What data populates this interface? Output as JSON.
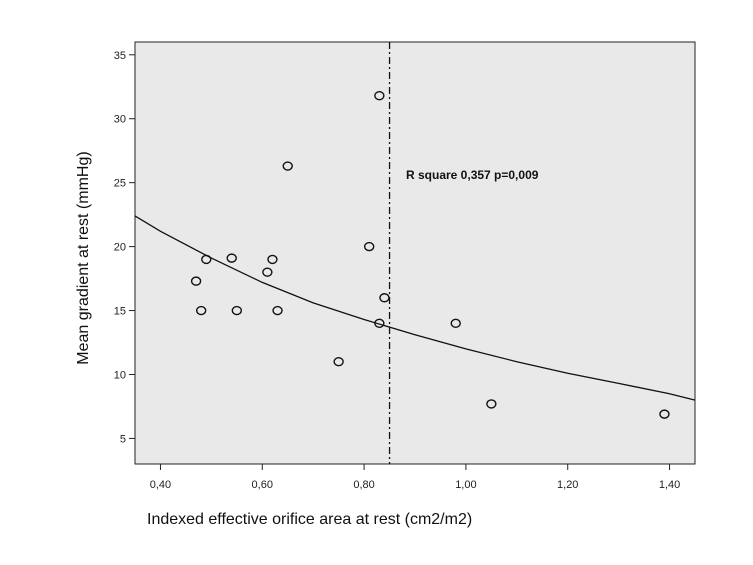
{
  "chart_data": {
    "type": "scatter",
    "title": "",
    "xlabel": "Indexed effective orifice area at rest (cm2/m2)",
    "ylabel": "Mean gradient at rest (mmHg)",
    "xlim": [
      0.35,
      1.45
    ],
    "ylim": [
      3,
      36
    ],
    "x_ticks": [
      0.4,
      0.6,
      0.8,
      1.0,
      1.2,
      1.4
    ],
    "x_tick_labels": [
      "0,40",
      "0,60",
      "0,80",
      "1,00",
      "1,20",
      "1,40"
    ],
    "y_ticks": [
      5,
      10,
      15,
      20,
      25,
      30,
      35
    ],
    "y_tick_labels": [
      "5",
      "10",
      "15",
      "20",
      "25",
      "30",
      "35"
    ],
    "points": [
      {
        "x": 0.47,
        "y": 17.3
      },
      {
        "x": 0.48,
        "y": 15.0
      },
      {
        "x": 0.49,
        "y": 19.0
      },
      {
        "x": 0.54,
        "y": 19.1
      },
      {
        "x": 0.55,
        "y": 15.0
      },
      {
        "x": 0.61,
        "y": 18.0
      },
      {
        "x": 0.62,
        "y": 19.0
      },
      {
        "x": 0.63,
        "y": 15.0
      },
      {
        "x": 0.65,
        "y": 26.3
      },
      {
        "x": 0.75,
        "y": 11.0
      },
      {
        "x": 0.81,
        "y": 20.0
      },
      {
        "x": 0.83,
        "y": 31.8
      },
      {
        "x": 0.83,
        "y": 14.0
      },
      {
        "x": 0.84,
        "y": 16.0
      },
      {
        "x": 0.98,
        "y": 14.0
      },
      {
        "x": 1.05,
        "y": 7.7
      },
      {
        "x": 1.39,
        "y": 6.9
      }
    ],
    "fit_curve": [
      {
        "x": 0.35,
        "y": 22.4
      },
      {
        "x": 0.4,
        "y": 21.2
      },
      {
        "x": 0.5,
        "y": 19.1
      },
      {
        "x": 0.6,
        "y": 17.2
      },
      {
        "x": 0.7,
        "y": 15.6
      },
      {
        "x": 0.8,
        "y": 14.3
      },
      {
        "x": 0.9,
        "y": 13.1
      },
      {
        "x": 1.0,
        "y": 12.0
      },
      {
        "x": 1.1,
        "y": 11.0
      },
      {
        "x": 1.2,
        "y": 10.1
      },
      {
        "x": 1.3,
        "y": 9.3
      },
      {
        "x": 1.4,
        "y": 8.5
      },
      {
        "x": 1.45,
        "y": 8.0
      }
    ],
    "reference_line_x": 0.85,
    "annotation": "R square 0,357 p=0,009",
    "plot_background": "#e9e9e9",
    "grid": false,
    "legend": "none"
  }
}
